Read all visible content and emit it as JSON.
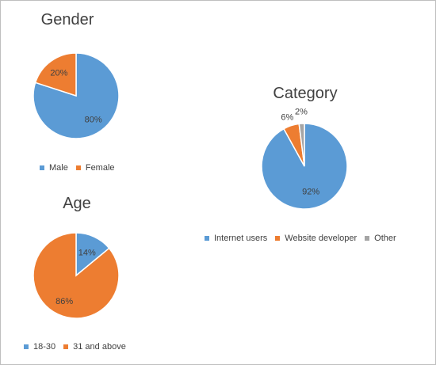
{
  "chart_data": [
    {
      "type": "pie",
      "title": "Gender",
      "categories": [
        "Male",
        "Female"
      ],
      "values": [
        80,
        20
      ],
      "labels": [
        "80%",
        "20%"
      ],
      "colors": [
        "#5B9BD5",
        "#ED7D31"
      ],
      "legend_position": "bottom"
    },
    {
      "type": "pie",
      "title": "Age",
      "categories": [
        "18-30",
        "31 and above"
      ],
      "values": [
        14,
        86
      ],
      "labels": [
        "14%",
        "86%"
      ],
      "colors": [
        "#5B9BD5",
        "#ED7D31"
      ],
      "legend_position": "bottom"
    },
    {
      "type": "pie",
      "title": "Category",
      "categories": [
        "Internet users",
        "Website developer",
        "Other"
      ],
      "values": [
        92,
        6,
        2
      ],
      "labels": [
        "92%",
        "6%",
        "2%"
      ],
      "colors": [
        "#5B9BD5",
        "#ED7D31",
        "#A5A5A5"
      ],
      "legend_position": "bottom"
    }
  ]
}
